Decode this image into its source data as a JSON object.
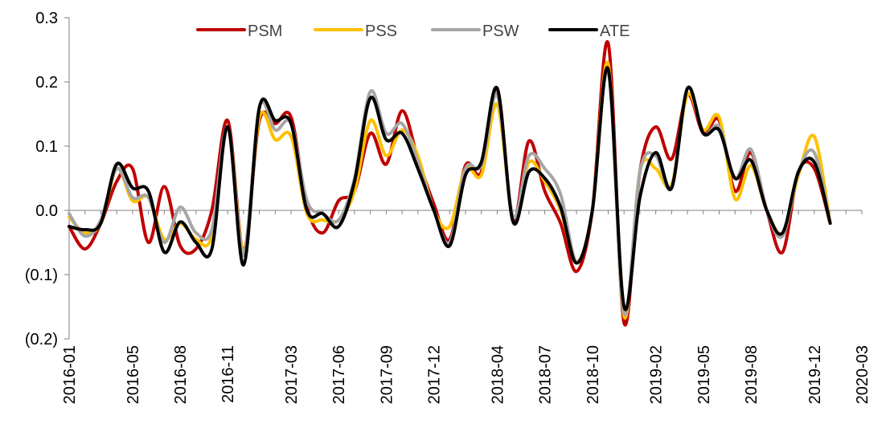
{
  "chart_data": {
    "type": "line",
    "title": "",
    "xlabel": "",
    "ylabel": "",
    "ylim": [
      -0.2,
      0.3
    ],
    "yticks": [
      0.3,
      0.2,
      0.1,
      0.0,
      -0.1,
      -0.2
    ],
    "ytick_labels": [
      "0.3",
      "0.2",
      "0.1",
      "0.0",
      "(0.1)",
      "(0.2)"
    ],
    "grid": false,
    "legend_position": "top-center",
    "x": [
      "2016-01",
      "2016-02",
      "2016-03",
      "2016-04",
      "2016-05",
      "2016-06",
      "2016-07",
      "2016-08",
      "2016-09",
      "2016-10",
      "2016-11",
      "2016-12",
      "2017-01",
      "2017-02",
      "2017-03",
      "2017-04",
      "2017-05",
      "2017-06",
      "2017-07",
      "2017-08",
      "2017-09",
      "2017-10",
      "2017-11",
      "2017-12",
      "2018-01",
      "2018-02",
      "2018-03",
      "2018-04",
      "2018-05",
      "2018-06",
      "2018-07",
      "2018-08",
      "2018-09",
      "2018-10",
      "2018-11",
      "2018-12",
      "2019-01",
      "2019-02",
      "2019-03",
      "2019-04",
      "2019-05",
      "2019-06",
      "2019-07",
      "2019-08",
      "2019-09",
      "2019-10",
      "2019-11",
      "2019-12",
      "2020-01",
      "2020-02",
      "2020-03"
    ],
    "xtick_labels": [
      "2016-01",
      "2016-05",
      "2016-08",
      "2016-11",
      "2017-03",
      "2017-06",
      "2017-09",
      "2017-12",
      "2018-04",
      "2018-07",
      "2018-10",
      "2019-02",
      "2019-05",
      "2019-08",
      "2019-12",
      "2020-03"
    ],
    "series": [
      {
        "name": "PSM",
        "color": "#c00000",
        "values": [
          -0.025,
          -0.06,
          -0.02,
          0.045,
          0.065,
          -0.05,
          0.037,
          -0.055,
          -0.06,
          0.0,
          0.14,
          -0.06,
          0.14,
          0.135,
          0.145,
          0.005,
          -0.035,
          0.015,
          0.03,
          0.12,
          0.072,
          0.155,
          0.08,
          0.01,
          -0.045,
          0.07,
          0.06,
          0.19,
          -0.015,
          0.108,
          0.03,
          -0.02,
          -0.095,
          0.0,
          0.26,
          -0.175,
          0.06,
          0.13,
          0.08,
          0.18,
          0.12,
          0.14,
          0.03,
          0.09,
          0.0,
          -0.065,
          0.06,
          0.065,
          -0.02,
          null,
          null
        ]
      },
      {
        "name": "PSS",
        "color": "#ffc000",
        "values": [
          -0.01,
          -0.035,
          -0.02,
          0.065,
          0.015,
          0.02,
          -0.045,
          -0.02,
          -0.045,
          -0.04,
          0.13,
          -0.065,
          0.145,
          0.11,
          0.115,
          -0.005,
          -0.015,
          -0.015,
          0.03,
          0.14,
          0.085,
          0.125,
          0.085,
          0.0,
          -0.025,
          0.065,
          0.055,
          0.165,
          -0.01,
          0.075,
          0.045,
          0.0,
          -0.08,
          0.0,
          0.228,
          -0.165,
          0.06,
          0.065,
          0.04,
          0.18,
          0.125,
          0.145,
          0.018,
          0.07,
          0.0,
          -0.035,
          0.055,
          0.115,
          -0.02,
          null,
          null
        ]
      },
      {
        "name": "PSW",
        "color": "#a6a6a6",
        "values": [
          -0.005,
          -0.04,
          -0.015,
          0.065,
          0.02,
          0.02,
          -0.05,
          0.005,
          -0.035,
          -0.03,
          0.13,
          -0.07,
          0.16,
          0.125,
          0.135,
          0.015,
          -0.005,
          -0.015,
          0.05,
          0.185,
          0.12,
          0.135,
          0.075,
          0.0,
          -0.05,
          0.065,
          0.07,
          0.18,
          -0.01,
          0.085,
          0.065,
          0.025,
          -0.08,
          0.0,
          0.215,
          -0.16,
          0.06,
          0.085,
          0.035,
          0.19,
          0.12,
          0.13,
          0.05,
          0.095,
          0.0,
          -0.04,
          0.06,
          0.09,
          -0.02,
          null,
          null
        ]
      },
      {
        "name": "ATE",
        "color": "#000000",
        "values": [
          -0.025,
          -0.03,
          -0.02,
          0.072,
          0.035,
          0.03,
          -0.065,
          -0.018,
          -0.05,
          -0.06,
          0.13,
          -0.085,
          0.16,
          0.14,
          0.135,
          0.0,
          -0.005,
          -0.025,
          0.045,
          0.175,
          0.11,
          0.12,
          0.065,
          0.0,
          -0.055,
          0.055,
          0.075,
          0.19,
          -0.018,
          0.06,
          0.05,
          0.005,
          -0.082,
          0.0,
          0.22,
          -0.15,
          0.02,
          0.09,
          0.035,
          0.19,
          0.12,
          0.125,
          0.05,
          0.078,
          0.0,
          -0.035,
          0.06,
          0.075,
          -0.02,
          null,
          null
        ]
      }
    ]
  }
}
